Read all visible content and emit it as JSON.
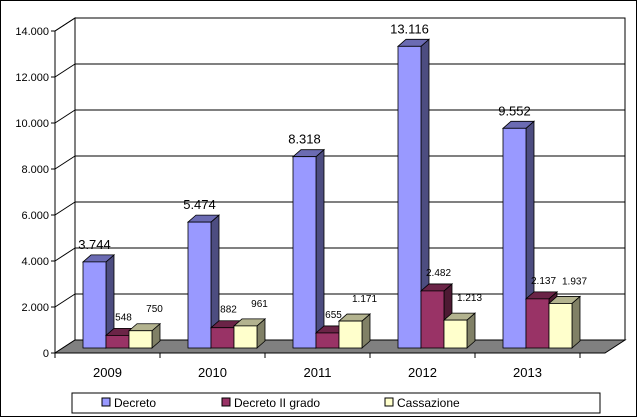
{
  "chart_data": {
    "type": "bar",
    "categories": [
      "2009",
      "2010",
      "2011",
      "2012",
      "2013"
    ],
    "series": [
      {
        "name": "Decreto",
        "values": [
          3744,
          5474,
          8318,
          13116,
          9552
        ],
        "color": "#9999FF",
        "labels": [
          "3.744",
          "5.474",
          "8.318",
          "13.116",
          "9.552"
        ]
      },
      {
        "name": "Decreto II grado",
        "values": [
          548,
          882,
          655,
          2482,
          2137
        ],
        "color": "#993366",
        "labels": [
          "548",
          "882",
          "655",
          "2.482",
          "2.137"
        ]
      },
      {
        "name": "Cassazione",
        "values": [
          750,
          961,
          1171,
          1213,
          1937
        ],
        "color": "#FFFFCC",
        "labels": [
          "750",
          "961",
          "1.171",
          "1.213",
          "1.937"
        ]
      }
    ],
    "yticks": [
      "0",
      "2.000",
      "4.000",
      "6.000",
      "8.000",
      "10.000",
      "12.000",
      "14.000"
    ],
    "ylim": [
      0,
      14000
    ],
    "grid": true,
    "legend": "bottom",
    "style": "3d-clustered"
  }
}
